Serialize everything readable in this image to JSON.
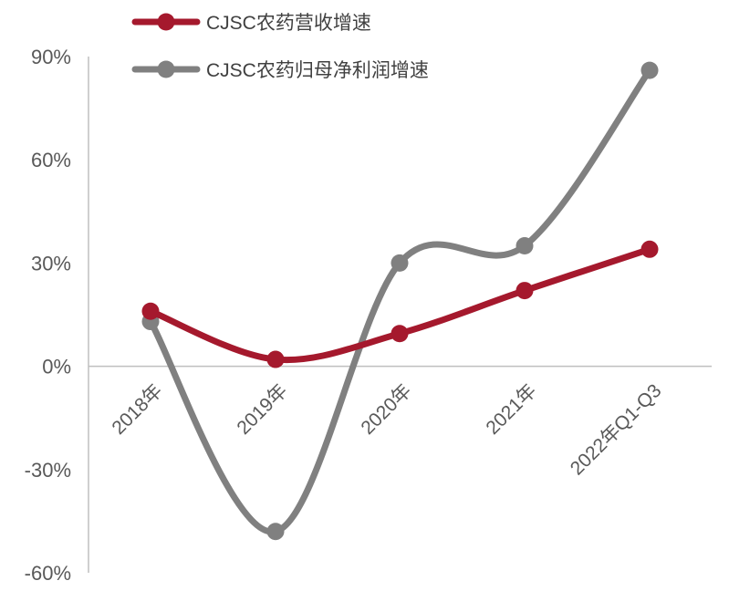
{
  "chart_data": {
    "type": "line",
    "categories": [
      "2018年",
      "2019年",
      "2020年",
      "2021年",
      "2022年Q1-Q3"
    ],
    "series": [
      {
        "name": "CJSC农药营收增速",
        "color": "#A5192D",
        "values": [
          16,
          2,
          9.5,
          22,
          34
        ]
      },
      {
        "name": "CJSC农药归母净利润增速",
        "color": "#808080",
        "values": [
          13,
          -48,
          30,
          35,
          86
        ]
      }
    ],
    "y_ticks": [
      90,
      60,
      30,
      0,
      -30,
      -60
    ],
    "y_tick_labels": [
      "90%",
      "60%",
      "30%",
      "0%",
      "-30%",
      "-60%"
    ],
    "ylim": [
      -60,
      90
    ],
    "xlabel": "",
    "ylabel": "",
    "smooth": true,
    "grid": false,
    "legend_position": "top-left"
  }
}
